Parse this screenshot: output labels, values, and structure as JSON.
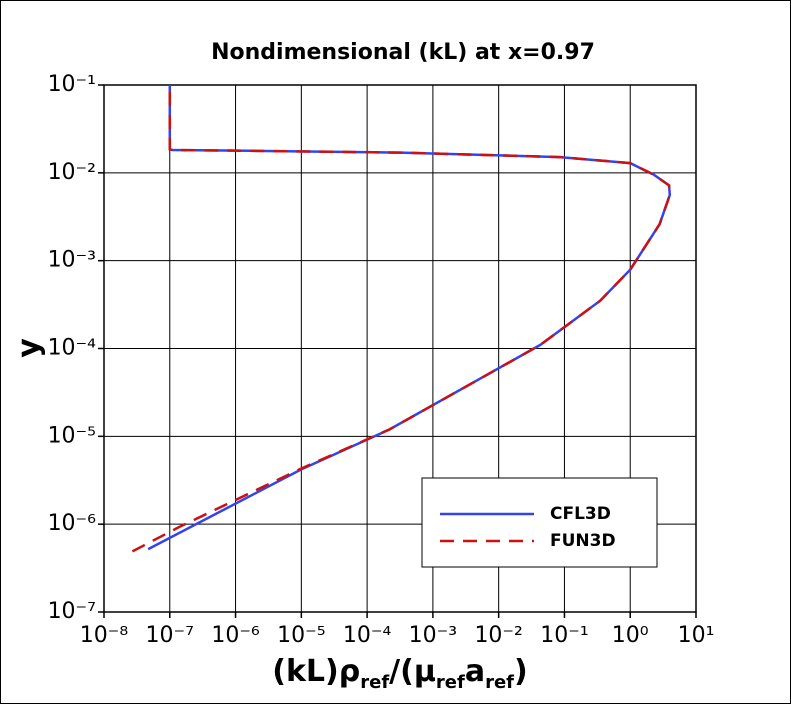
{
  "chart_data": {
    "type": "line",
    "title": "Nondimensional (kL) at x=0.97",
    "xlabel": [
      "(kL)ρ",
      "ref",
      "/(μ",
      "ref",
      "a",
      "ref",
      ")"
    ],
    "ylabel": "y",
    "xscale": "log",
    "yscale": "log",
    "grid": true,
    "legend": "lower right",
    "xlim": [
      1e-08,
      10
    ],
    "ylim": [
      1e-07,
      0.1
    ],
    "xticks": [
      {
        "value": 1e-08,
        "label": "10⁻⁸"
      },
      {
        "value": 1e-07,
        "label": "10⁻⁷"
      },
      {
        "value": 1e-06,
        "label": "10⁻⁶"
      },
      {
        "value": 1e-05,
        "label": "10⁻⁵"
      },
      {
        "value": 0.0001,
        "label": "10⁻⁴"
      },
      {
        "value": 0.001,
        "label": "10⁻³"
      },
      {
        "value": 0.01,
        "label": "10⁻²"
      },
      {
        "value": 0.1,
        "label": "10⁻¹"
      },
      {
        "value": 1,
        "label": "10⁰"
      },
      {
        "value": 10,
        "label": "10¹"
      }
    ],
    "yticks": [
      {
        "value": 1e-07,
        "label": "10⁻⁷"
      },
      {
        "value": 1e-06,
        "label": "10⁻⁶"
      },
      {
        "value": 1e-05,
        "label": "10⁻⁵"
      },
      {
        "value": 0.0001,
        "label": "10⁻⁴"
      },
      {
        "value": 0.001,
        "label": "10⁻³"
      },
      {
        "value": 0.01,
        "label": "10⁻²"
      },
      {
        "value": 0.1,
        "label": "10⁻¹"
      }
    ],
    "series": [
      {
        "name": "CFL3D",
        "color": "#3344ee",
        "dash": false,
        "x": [
          4.7e-08,
          1e-05,
          0.00022,
          0.043,
          0.35,
          1.0,
          2.8,
          4.0,
          3.9,
          2.3,
          1.0,
          0.085,
          0.00032,
          1.7e-06,
          1.1e-07,
          1e-07,
          1e-07
        ],
        "values": [
          5.2e-07,
          4.2e-06,
          1.2e-05,
          0.00011,
          0.00035,
          0.00079,
          0.0026,
          0.0056,
          0.0072,
          0.0095,
          0.0129,
          0.0151,
          0.017,
          0.0178,
          0.0182,
          0.0185,
          0.1
        ]
      },
      {
        "name": "FUN3D",
        "color": "#cc1111",
        "dash": true,
        "x": [
          2.7e-08,
          1.4e-07,
          1e-05,
          0.00022,
          0.043,
          0.35,
          1.0,
          2.8,
          4.0,
          3.9,
          2.3,
          1.0,
          0.085,
          0.00032,
          1.7e-06,
          1.1e-07,
          1e-07,
          1e-07
        ],
        "values": [
          4.9e-07,
          9.3e-07,
          4.3e-06,
          1.2e-05,
          0.00011,
          0.00035,
          0.00079,
          0.0026,
          0.0056,
          0.0072,
          0.0095,
          0.0129,
          0.0151,
          0.017,
          0.0178,
          0.0182,
          0.0185,
          0.1
        ]
      }
    ]
  }
}
